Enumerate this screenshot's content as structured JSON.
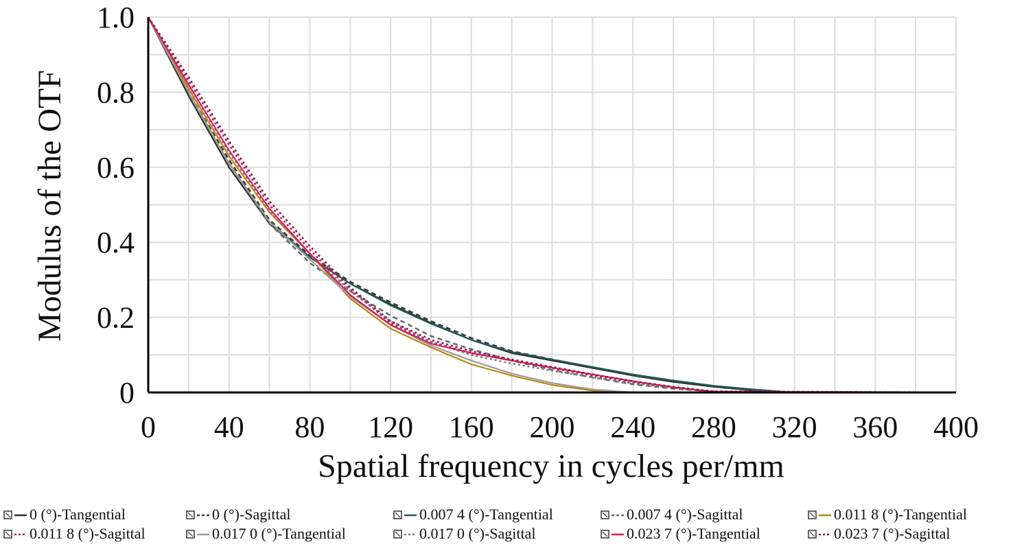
{
  "chart_data": {
    "type": "line",
    "title": "",
    "xlabel": "Spatial frequency in cycles per/mm",
    "ylabel": "Modulus of the OTF",
    "xlim": [
      0,
      400
    ],
    "ylim": [
      0,
      1.0
    ],
    "xticks": [
      0,
      40,
      80,
      120,
      160,
      200,
      240,
      280,
      320,
      360,
      400
    ],
    "yticks": [
      0,
      0.2,
      0.4,
      0.6,
      0.8,
      1.0
    ],
    "ytick_labels": [
      "0",
      "0.2",
      "0.4",
      "0.6",
      "0.8",
      "1.0"
    ],
    "grid": true,
    "legend_position": "bottom",
    "series": [
      {
        "name": "0 (°)-Tangential",
        "color": "#2b2b2b",
        "dash": "solid",
        "x": [
          0,
          20,
          40,
          60,
          80,
          100,
          120,
          140,
          160,
          180,
          200,
          220,
          240,
          260,
          280,
          300,
          320,
          400
        ],
        "y": [
          1.0,
          0.79,
          0.6,
          0.45,
          0.36,
          0.29,
          0.235,
          0.185,
          0.14,
          0.105,
          0.085,
          0.065,
          0.045,
          0.028,
          0.015,
          0.005,
          0.0,
          0.0
        ]
      },
      {
        "name": "0 (°)-Sagittal",
        "color": "#3d3d3d",
        "dash": "dash",
        "x": [
          0,
          20,
          40,
          60,
          80,
          100,
          120,
          140,
          160,
          180,
          200,
          220,
          240,
          260,
          280,
          300,
          320,
          400
        ],
        "y": [
          1.0,
          0.8,
          0.62,
          0.46,
          0.365,
          0.295,
          0.24,
          0.19,
          0.145,
          0.11,
          0.088,
          0.067,
          0.047,
          0.03,
          0.016,
          0.006,
          0.0,
          0.0
        ]
      },
      {
        "name": "0.007 4 (°)-Tangential",
        "color": "#1f5f5b",
        "dash": "solid",
        "x": [
          0,
          20,
          40,
          60,
          80,
          100,
          120,
          140,
          160,
          180,
          200,
          220,
          240,
          260,
          280,
          300,
          320,
          400
        ],
        "y": [
          1.0,
          0.8,
          0.61,
          0.455,
          0.36,
          0.29,
          0.232,
          0.183,
          0.14,
          0.108,
          0.088,
          0.068,
          0.048,
          0.032,
          0.018,
          0.008,
          0.0,
          0.0
        ]
      },
      {
        "name": "0.007 4 (°)-Sagittal",
        "color": "#6a6a6a",
        "dash": "dash",
        "x": [
          0,
          20,
          40,
          60,
          80,
          100,
          120,
          140,
          160,
          180,
          200,
          220,
          240,
          260,
          280,
          300,
          400
        ],
        "y": [
          1.0,
          0.8,
          0.61,
          0.45,
          0.345,
          0.27,
          0.205,
          0.15,
          0.115,
          0.085,
          0.06,
          0.04,
          0.022,
          0.01,
          0.003,
          0.0,
          0.0
        ]
      },
      {
        "name": "0.011 8 (°)-Tangential",
        "color": "#b8860b",
        "dash": "solid",
        "x": [
          0,
          20,
          40,
          60,
          80,
          100,
          120,
          140,
          160,
          180,
          200,
          220,
          240,
          400
        ],
        "y": [
          1.0,
          0.81,
          0.63,
          0.48,
          0.37,
          0.25,
          0.17,
          0.12,
          0.075,
          0.045,
          0.02,
          0.005,
          0.0,
          0.0
        ]
      },
      {
        "name": "0.011 8 (°)-Sagittal",
        "color": "#c2185b",
        "dash": "dot",
        "x": [
          0,
          20,
          40,
          60,
          80,
          100,
          120,
          140,
          160,
          180,
          200,
          220,
          240,
          260,
          280,
          400
        ],
        "y": [
          1.0,
          0.83,
          0.66,
          0.5,
          0.38,
          0.275,
          0.185,
          0.135,
          0.105,
          0.085,
          0.065,
          0.045,
          0.027,
          0.012,
          0.002,
          0.0
        ]
      },
      {
        "name": "0.017 0 (°)-Tangential",
        "color": "#9a9a9a",
        "dash": "solid",
        "x": [
          0,
          20,
          40,
          60,
          80,
          100,
          120,
          140,
          160,
          180,
          200,
          220,
          240,
          400
        ],
        "y": [
          1.0,
          0.8,
          0.61,
          0.455,
          0.355,
          0.255,
          0.18,
          0.125,
          0.085,
          0.05,
          0.025,
          0.008,
          0.0,
          0.0
        ]
      },
      {
        "name": "0.017 0 (°)-Sagittal",
        "color": "#7a7a7a",
        "dash": "dot",
        "x": [
          0,
          20,
          40,
          60,
          80,
          100,
          120,
          140,
          160,
          180,
          200,
          220,
          240,
          260,
          280,
          400
        ],
        "y": [
          1.0,
          0.82,
          0.64,
          0.485,
          0.37,
          0.27,
          0.19,
          0.135,
          0.1,
          0.077,
          0.058,
          0.04,
          0.024,
          0.012,
          0.002,
          0.0
        ]
      },
      {
        "name": "0.023 7 (°)-Tangential",
        "color": "#d81b60",
        "dash": "solid",
        "x": [
          0,
          20,
          40,
          60,
          80,
          100,
          120,
          140,
          160,
          180,
          200,
          220,
          240,
          260,
          280,
          400
        ],
        "y": [
          1.0,
          0.82,
          0.645,
          0.49,
          0.37,
          0.26,
          0.18,
          0.13,
          0.105,
          0.085,
          0.066,
          0.048,
          0.03,
          0.014,
          0.002,
          0.0
        ]
      },
      {
        "name": "0.023 7 (°)-Sagittal",
        "color": "#8e1a4a",
        "dash": "dot",
        "x": [
          0,
          20,
          40,
          60,
          80,
          100,
          120,
          140,
          160,
          180,
          200,
          220,
          240,
          260,
          280,
          400
        ],
        "y": [
          1.0,
          0.84,
          0.67,
          0.51,
          0.39,
          0.28,
          0.19,
          0.14,
          0.11,
          0.088,
          0.068,
          0.048,
          0.03,
          0.015,
          0.003,
          0.0
        ]
      }
    ]
  }
}
